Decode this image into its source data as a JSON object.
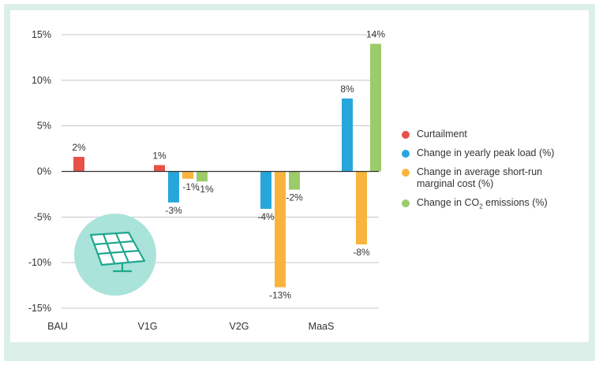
{
  "chart_data": {
    "type": "bar",
    "title": "",
    "xlabel": "",
    "ylabel": "",
    "categories": [
      "BAU",
      "V1G",
      "V2G",
      "MaaS"
    ],
    "ylim": [
      -15,
      15
    ],
    "yticks": [
      15,
      10,
      5,
      0,
      -5,
      -10,
      -15
    ],
    "ytick_labels": [
      "15%",
      "10%",
      "5%",
      "0%",
      "-5%",
      "-10%",
      "-15%"
    ],
    "grid": true,
    "legend_position": "right",
    "series": [
      {
        "name": "Curtailment",
        "color": "#e8514a",
        "values": [
          1.6,
          0.7,
          null,
          null
        ],
        "labels": [
          "2%",
          "1%",
          "",
          ""
        ]
      },
      {
        "name": "Change in yearly peak load (%)",
        "color": "#27a6dc",
        "values": [
          null,
          -3.4,
          -4.1,
          8.0
        ],
        "labels": [
          "",
          "-3%",
          "-4%",
          "8%"
        ]
      },
      {
        "name": "Change in average short-run marginal cost (%)",
        "color": "#f9b43d",
        "values": [
          null,
          -0.8,
          -12.7,
          -8.0
        ],
        "labels": [
          "",
          "-1%",
          "-13%",
          "-8%"
        ]
      },
      {
        "name": "Change in CO2 emissions (%)",
        "color": "#9ccc6a",
        "values": [
          null,
          -1.1,
          -2.0,
          14.0
        ],
        "labels": [
          "",
          "-1%",
          "-2%",
          "14%"
        ]
      }
    ]
  },
  "legend": {
    "items": [
      {
        "label": "Curtailment",
        "color": "#e8514a"
      },
      {
        "label": "Change in yearly peak load (%)",
        "color": "#27a6dc"
      },
      {
        "label": "Change in average short-run marginal cost (%)",
        "color": "#f9b43d"
      },
      {
        "label_pre": "Change in CO",
        "label_sub": "2",
        "label_post": " emissions (%)",
        "color": "#9ccc6a"
      }
    ]
  },
  "decoration": {
    "icon": "solar-panel-icon",
    "circle_color": "#a9e3da",
    "panel_color": "#1fa88f"
  }
}
